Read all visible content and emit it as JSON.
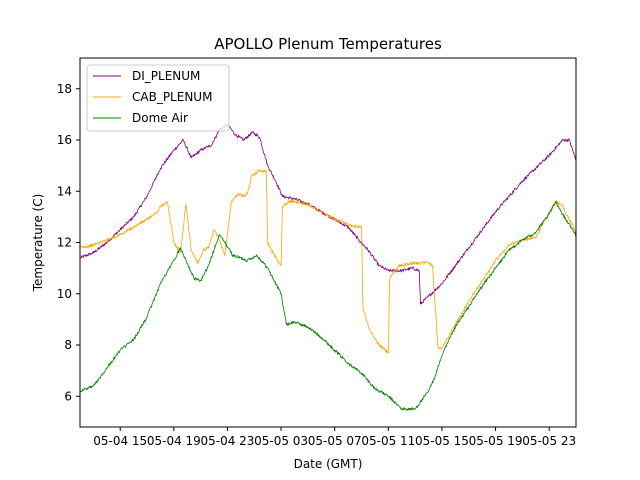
{
  "chart_data": {
    "type": "line",
    "title": "APOLLO Plenum Temperatures",
    "xlabel": "Date (GMT)",
    "ylabel": "Temperature (C)",
    "x_unit": "hours since 05-04 12:00",
    "xlim": [
      0,
      37
    ],
    "ylim": [
      4.8,
      19.2
    ],
    "x_ticks": [
      {
        "x": 3,
        "label": "05-04 15"
      },
      {
        "x": 7,
        "label": "05-04 19"
      },
      {
        "x": 11,
        "label": "05-04 23"
      },
      {
        "x": 15,
        "label": "05-05 03"
      },
      {
        "x": 19,
        "label": "05-05 07"
      },
      {
        "x": 23,
        "label": "05-05 11"
      },
      {
        "x": 27,
        "label": "05-05 15"
      },
      {
        "x": 31,
        "label": "05-05 19"
      },
      {
        "x": 35,
        "label": "05-05 23"
      }
    ],
    "y_ticks": [
      6,
      8,
      10,
      12,
      14,
      16,
      18
    ],
    "legend_position": "top-left",
    "series": [
      {
        "name": "DI_PLENUM",
        "color": "#800080",
        "points": [
          [
            0,
            11.4
          ],
          [
            1,
            11.6
          ],
          [
            2,
            12.0
          ],
          [
            3,
            12.5
          ],
          [
            4,
            13.0
          ],
          [
            5,
            13.8
          ],
          [
            6,
            14.9
          ],
          [
            7,
            15.6
          ],
          [
            7.7,
            16.0
          ],
          [
            8.3,
            15.3
          ],
          [
            9,
            15.6
          ],
          [
            9.8,
            15.8
          ],
          [
            10.4,
            16.4
          ],
          [
            11,
            16.6
          ],
          [
            11.6,
            16.2
          ],
          [
            12.2,
            16.0
          ],
          [
            12.9,
            16.3
          ],
          [
            13.4,
            16.1
          ],
          [
            14,
            15.0
          ],
          [
            14.6,
            14.4
          ],
          [
            15.1,
            13.8
          ],
          [
            16,
            13.7
          ],
          [
            17,
            13.5
          ],
          [
            18,
            13.2
          ],
          [
            19,
            12.9
          ],
          [
            20,
            12.6
          ],
          [
            20.8,
            12.1
          ],
          [
            21.5,
            11.7
          ],
          [
            22.3,
            11.1
          ],
          [
            23,
            10.9
          ],
          [
            24,
            10.9
          ],
          [
            24.8,
            11.0
          ],
          [
            25.3,
            10.9
          ],
          [
            25.4,
            9.6
          ],
          [
            26,
            9.9
          ],
          [
            27,
            10.4
          ],
          [
            28,
            11.1
          ],
          [
            29,
            11.8
          ],
          [
            30,
            12.5
          ],
          [
            31,
            13.2
          ],
          [
            32,
            13.8
          ],
          [
            33,
            14.4
          ],
          [
            34,
            14.9
          ],
          [
            35,
            15.4
          ],
          [
            36,
            16.0
          ],
          [
            36.5,
            16.0
          ],
          [
            37,
            15.2
          ]
        ]
      },
      {
        "name": "CAB_PLENUM",
        "color": "#ffa500",
        "points": [
          [
            0,
            11.8
          ],
          [
            1,
            11.9
          ],
          [
            2,
            12.1
          ],
          [
            3,
            12.3
          ],
          [
            4,
            12.6
          ],
          [
            5,
            12.9
          ],
          [
            5.8,
            13.2
          ],
          [
            6,
            13.4
          ],
          [
            6.5,
            13.6
          ],
          [
            7,
            12.0
          ],
          [
            7.5,
            11.6
          ],
          [
            7.9,
            13.5
          ],
          [
            8.3,
            11.7
          ],
          [
            8.8,
            11.2
          ],
          [
            9.2,
            11.7
          ],
          [
            9.6,
            11.8
          ],
          [
            10,
            12.5
          ],
          [
            10.4,
            12.1
          ],
          [
            10.8,
            11.5
          ],
          [
            11.3,
            13.6
          ],
          [
            11.8,
            13.9
          ],
          [
            12.2,
            13.8
          ],
          [
            12.5,
            13.9
          ],
          [
            12.8,
            14.6
          ],
          [
            13.3,
            14.8
          ],
          [
            13.9,
            14.8
          ],
          [
            14.0,
            12.0
          ],
          [
            14.4,
            11.6
          ],
          [
            15,
            11.1
          ],
          [
            15.1,
            13.4
          ],
          [
            15.6,
            13.6
          ],
          [
            16,
            13.6
          ],
          [
            17,
            13.5
          ],
          [
            18,
            13.2
          ],
          [
            19,
            12.9
          ],
          [
            20,
            12.7
          ],
          [
            21,
            12.6
          ],
          [
            21.1,
            9.5
          ],
          [
            21.6,
            8.6
          ],
          [
            22.3,
            8.0
          ],
          [
            23,
            7.7
          ],
          [
            23.1,
            10.6
          ],
          [
            23.8,
            11.1
          ],
          [
            25,
            11.2
          ],
          [
            26,
            11.2
          ],
          [
            26.3,
            11.1
          ],
          [
            26.7,
            7.9
          ],
          [
            27,
            7.9
          ],
          [
            28,
            8.8
          ],
          [
            29,
            9.7
          ],
          [
            30,
            10.5
          ],
          [
            31,
            11.3
          ],
          [
            32,
            11.9
          ],
          [
            33,
            12.1
          ],
          [
            34,
            12.2
          ],
          [
            35,
            13.2
          ],
          [
            35.5,
            13.6
          ],
          [
            36,
            13.4
          ],
          [
            37,
            12.4
          ]
        ]
      },
      {
        "name": "Dome Air",
        "color": "#008000",
        "points": [
          [
            0,
            6.2
          ],
          [
            1,
            6.4
          ],
          [
            2,
            7.1
          ],
          [
            3,
            7.8
          ],
          [
            4,
            8.2
          ],
          [
            5,
            9.1
          ],
          [
            6,
            10.4
          ],
          [
            7,
            11.3
          ],
          [
            7.5,
            11.8
          ],
          [
            8,
            11.2
          ],
          [
            8.5,
            10.6
          ],
          [
            9,
            10.5
          ],
          [
            9.5,
            11.0
          ],
          [
            10,
            11.7
          ],
          [
            10.4,
            12.3
          ],
          [
            10.8,
            12.0
          ],
          [
            11.4,
            11.5
          ],
          [
            12.5,
            11.3
          ],
          [
            13.2,
            11.5
          ],
          [
            14,
            11.0
          ],
          [
            15,
            10.0
          ],
          [
            15.4,
            8.8
          ],
          [
            16,
            8.9
          ],
          [
            17,
            8.7
          ],
          [
            18,
            8.3
          ],
          [
            19,
            7.8
          ],
          [
            20,
            7.3
          ],
          [
            21,
            6.9
          ],
          [
            22,
            6.3
          ],
          [
            23,
            6.0
          ],
          [
            24,
            5.5
          ],
          [
            25,
            5.5
          ],
          [
            26,
            6.2
          ],
          [
            26.5,
            6.8
          ],
          [
            27,
            7.6
          ],
          [
            28,
            8.7
          ],
          [
            29,
            9.5
          ],
          [
            30,
            10.3
          ],
          [
            31,
            11.0
          ],
          [
            32,
            11.7
          ],
          [
            33,
            12.1
          ],
          [
            34,
            12.4
          ],
          [
            35,
            13.1
          ],
          [
            35.5,
            13.6
          ],
          [
            36,
            13.1
          ],
          [
            37,
            12.3
          ]
        ]
      }
    ]
  }
}
